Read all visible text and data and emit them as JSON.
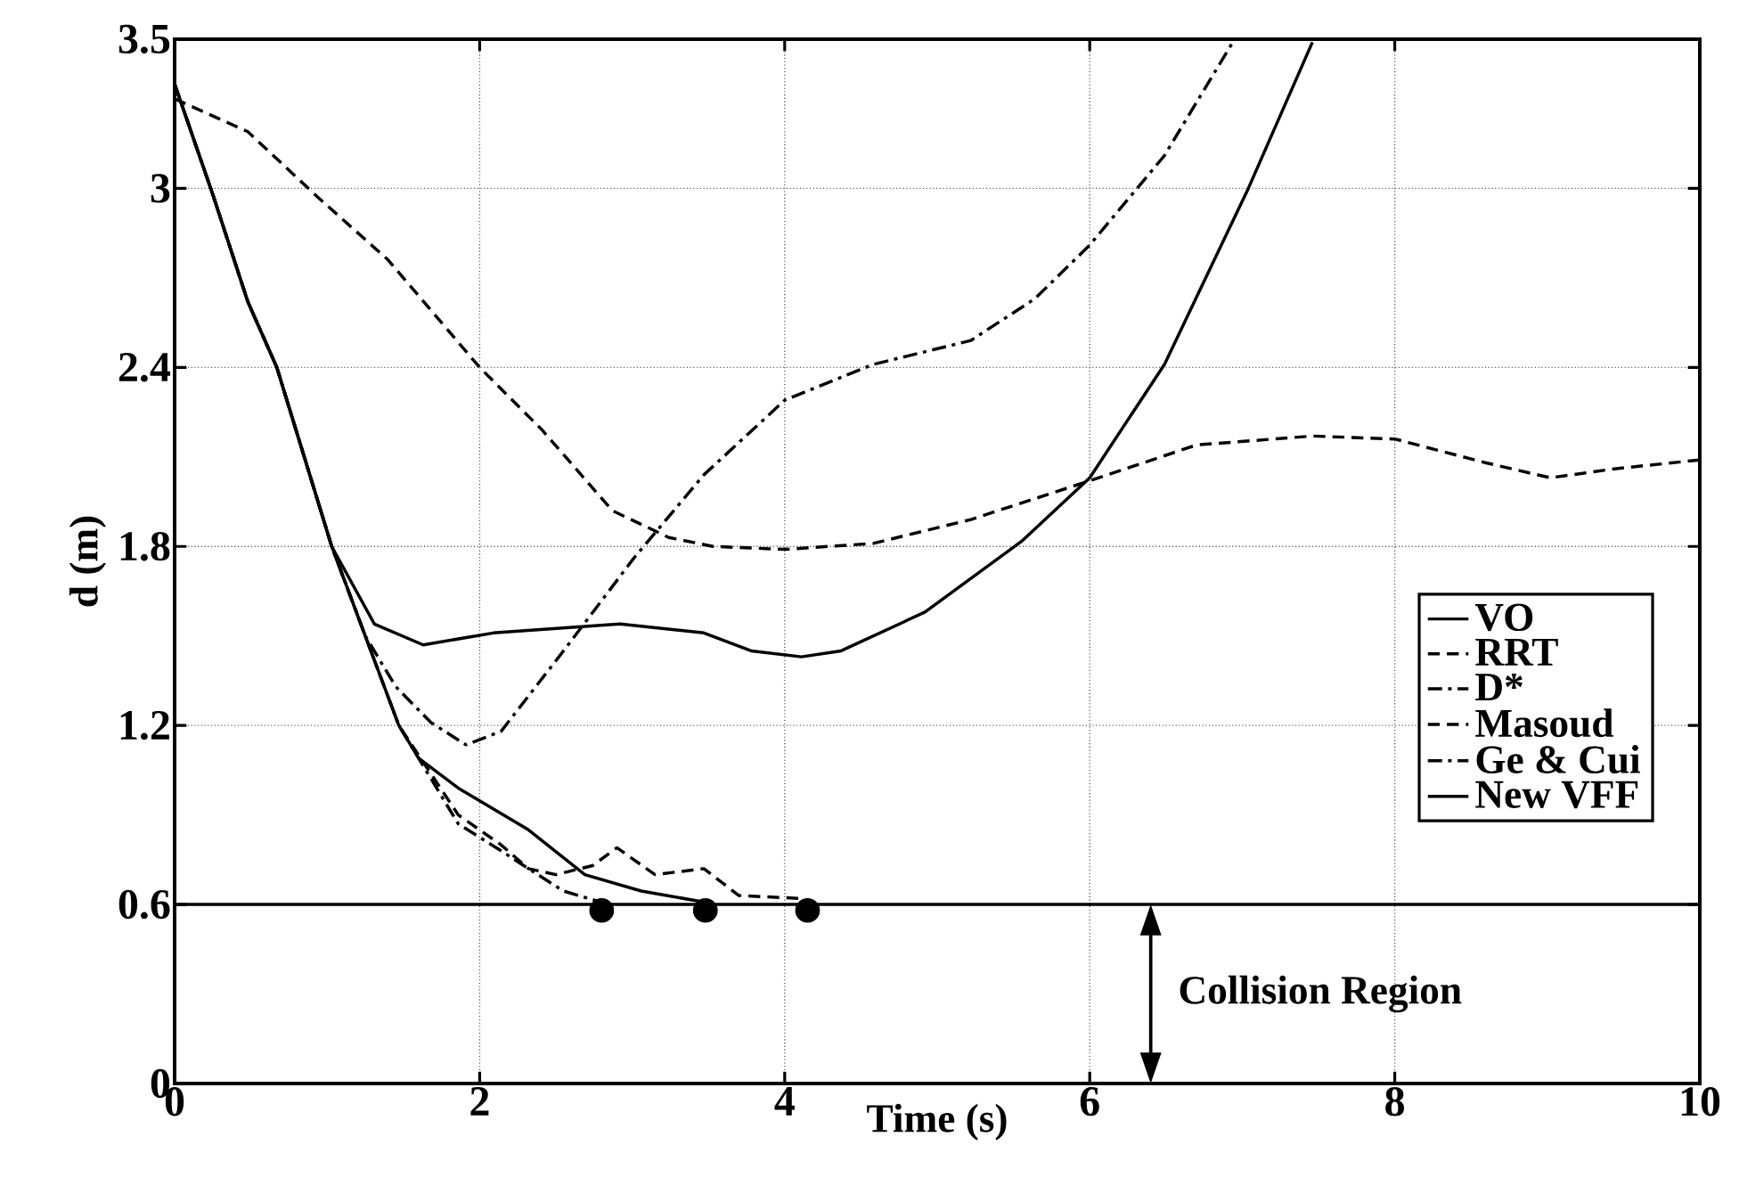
{
  "chart_data": {
    "type": "line",
    "xlabel": "Time (s)",
    "ylabel": "d (m)",
    "xlim": [
      0,
      10
    ],
    "ylim": [
      0,
      3.5
    ],
    "xticks": [
      0,
      2,
      4,
      6,
      8,
      10
    ],
    "yticks": [
      0,
      0.6,
      1.2,
      1.8,
      2.4,
      3,
      3.5
    ],
    "grid": true,
    "legend": "right",
    "series": [
      {
        "name": "VO",
        "color": "#000000",
        "line_style": "solid",
        "x": [
          0,
          0.25,
          0.48,
          0.67,
          1.03,
          1.25,
          1.47,
          1.6,
          1.86,
          2.32,
          2.69,
          3.06,
          3.45
        ],
        "values": [
          3.35,
          2.98,
          2.62,
          2.4,
          1.8,
          1.5,
          1.2,
          1.09,
          0.99,
          0.85,
          0.7,
          0.645,
          0.61
        ]
      },
      {
        "name": "RRT",
        "color": "#000000",
        "line_style": "dashed",
        "x": [
          0,
          0.25,
          0.48,
          0.67,
          1.03,
          1.25,
          1.47,
          1.86,
          2.14,
          2.32,
          2.5,
          2.74,
          2.9,
          3.15,
          3.47,
          3.7,
          4.11
        ],
        "values": [
          3.35,
          2.98,
          2.62,
          2.4,
          1.8,
          1.5,
          1.2,
          0.9,
          0.8,
          0.72,
          0.7,
          0.73,
          0.79,
          0.7,
          0.72,
          0.63,
          0.62
        ]
      },
      {
        "name": "D*",
        "color": "#000000",
        "line_style": "dashdot",
        "x": [
          0,
          0.25,
          0.48,
          0.67,
          1.03,
          1.25,
          1.47,
          1.86,
          2.14,
          2.32,
          2.55,
          2.78
        ],
        "values": [
          3.35,
          2.98,
          2.62,
          2.4,
          1.8,
          1.5,
          1.2,
          0.87,
          0.78,
          0.72,
          0.645,
          0.61
        ]
      },
      {
        "name": "Masoud",
        "color": "#000000",
        "line_style": "dashed",
        "x": [
          0,
          0.48,
          0.94,
          1.4,
          2.0,
          2.41,
          2.87,
          3.24,
          3.53,
          4.0,
          4.58,
          5.22,
          6.0,
          6.7,
          7.46,
          8.0,
          8.6,
          9.02,
          9.44,
          10
        ],
        "values": [
          3.3,
          3.19,
          2.97,
          2.76,
          2.4,
          2.19,
          1.92,
          1.83,
          1.8,
          1.79,
          1.81,
          1.89,
          2.02,
          2.14,
          2.17,
          2.16,
          2.08,
          2.03,
          2.06,
          2.09
        ]
      },
      {
        "name": "Ge & Cui",
        "color": "#000000",
        "line_style": "dashdot",
        "x": [
          0,
          0.25,
          0.48,
          0.67,
          1.03,
          1.25,
          1.45,
          1.68,
          1.91,
          2.14,
          2.55,
          3.01,
          3.47,
          4.0,
          4.58,
          5.22,
          5.64,
          6.0,
          6.49,
          6.95
        ],
        "values": [
          3.35,
          2.98,
          2.62,
          2.4,
          1.8,
          1.5,
          1.33,
          1.21,
          1.135,
          1.18,
          1.45,
          1.76,
          2.04,
          2.29,
          2.41,
          2.49,
          2.63,
          2.81,
          3.11,
          3.5
        ]
      },
      {
        "name": "New VFF",
        "color": "#000000",
        "line_style": "solid",
        "x": [
          0,
          0.25,
          0.48,
          0.67,
          1.03,
          1.31,
          1.63,
          2.09,
          2.92,
          3.47,
          3.78,
          4.11,
          4.37,
          4.92,
          5.56,
          6.0,
          6.49,
          7.04,
          7.46
        ],
        "values": [
          3.35,
          2.98,
          2.62,
          2.4,
          1.8,
          1.54,
          1.47,
          1.51,
          1.54,
          1.51,
          1.45,
          1.43,
          1.45,
          1.58,
          1.82,
          2.03,
          2.41,
          3.0,
          3.49
        ]
      },
      {
        "type": "scatter",
        "color": "#000000",
        "x": [
          2.8,
          3.48,
          4.15
        ],
        "values": [
          0.58,
          0.58,
          0.58
        ]
      }
    ],
    "ref_lines": [
      {
        "axis": "y",
        "value": 0.6,
        "color": "#000000",
        "line_style": "solid"
      }
    ],
    "annotations": [
      "Collision Region"
    ]
  }
}
